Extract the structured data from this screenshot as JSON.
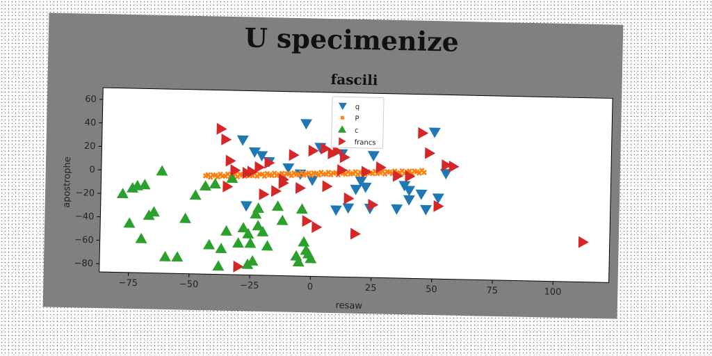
{
  "suptitle": "U specimenize",
  "colors": {
    "figure_bg": "#808080",
    "axes_bg": "#ffffff",
    "q": "#1f77b4",
    "P": "#ff7f0e",
    "c": "#2ca02c",
    "francs": "#d62728"
  },
  "chart_data": {
    "type": "scatter",
    "title": "fascili",
    "xlabel": "resaw",
    "ylabel": "apostrophe",
    "xlim": [
      -87,
      123
    ],
    "ylim": [
      -87,
      70
    ],
    "xticks": [
      -75,
      -50,
      -25,
      0,
      25,
      50,
      75,
      100
    ],
    "yticks": [
      60,
      40,
      20,
      0,
      -20,
      -40,
      -60,
      -80
    ],
    "xtick_labels": [
      "−75",
      "−50",
      "−25",
      "0",
      "25",
      "50",
      "75",
      "100"
    ],
    "ytick_labels": [
      "60",
      "40",
      "20",
      "0",
      "−20",
      "−40",
      "−60",
      "−80"
    ],
    "grid": false,
    "legend_position": "top-center",
    "series": [
      {
        "name": "q",
        "marker": "triangle-down",
        "color": "#1f77b4",
        "x": [
          -29,
          -24,
          -21,
          -18,
          -10,
          -5,
          -3,
          0,
          12,
          15,
          18,
          22,
          24,
          25,
          20,
          10,
          3,
          38,
          40,
          45,
          47,
          50,
          52,
          55,
          40,
          35,
          -27
        ],
        "y": [
          28,
          18,
          15,
          10,
          5,
          0,
          43,
          -5,
          18,
          -28,
          -12,
          -10,
          -28,
          17,
          -5,
          -30,
          23,
          -8,
          -12,
          -15,
          -28,
          38,
          -18,
          3,
          -20,
          -28,
          -28
        ]
      },
      {
        "name": "P",
        "marker": "x",
        "color": "#ff7f0e",
        "x_range": [
          -44,
          46
        ],
        "count": 90,
        "intercept": 0.3,
        "slope": 0.082,
        "spread": 1.2
      },
      {
        "name": "c",
        "marker": "triangle-up",
        "color": "#2ca02c",
        "x": [
          -78,
          -74,
          -72,
          -69,
          -67,
          -65,
          -62,
          -60,
          -55,
          -52,
          -48,
          -44,
          -42,
          -40,
          -37,
          -35,
          -33,
          -30,
          -28,
          -26,
          -25,
          -24,
          -23,
          -22,
          -20,
          -18,
          -14,
          -12,
          -6,
          -5,
          -4,
          -3,
          -2,
          -1,
          0,
          -26,
          -22,
          -38,
          -75,
          -70
        ],
        "y": [
          -20,
          -15,
          -13,
          -12,
          -38,
          -35,
          0,
          -73,
          -73,
          -40,
          -20,
          -12,
          -62,
          -10,
          -65,
          -50,
          -5,
          -60,
          -47,
          -52,
          -60,
          -75,
          -35,
          -45,
          -50,
          -62,
          -28,
          -40,
          -70,
          -75,
          -30,
          -58,
          -65,
          -68,
          -72,
          -78,
          -30,
          -80,
          -45,
          -58
        ]
      },
      {
        "name": "francs",
        "marker": "triangle-right",
        "color": "#d62728",
        "x": [
          -38,
          -36,
          -34,
          -32,
          -30,
          -27,
          -25,
          -22,
          -18,
          -15,
          -12,
          -8,
          -5,
          -2,
          2,
          5,
          8,
          10,
          13,
          15,
          18,
          22,
          25,
          28,
          35,
          40,
          45,
          48,
          52,
          55,
          58,
          112,
          -35,
          -20,
          -12,
          0,
          6,
          12
        ],
        "y": [
          37,
          28,
          10,
          2,
          -80,
          0,
          1,
          5,
          9,
          -15,
          -5,
          16,
          -12,
          -40,
          -45,
          22,
          18,
          20,
          15,
          -20,
          -50,
          3,
          -25,
          7,
          0,
          0,
          37,
          20,
          -25,
          10,
          9,
          -53,
          -12,
          -18,
          -8,
          20,
          -10,
          4
        ]
      }
    ]
  }
}
